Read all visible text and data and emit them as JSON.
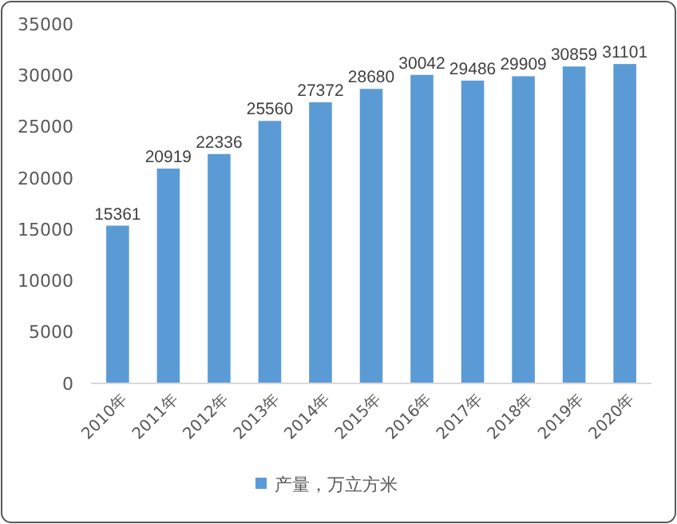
{
  "chart_data": {
    "type": "bar",
    "categories": [
      "2010年",
      "2011年",
      "2012年",
      "2013年",
      "2014年",
      "2015年",
      "2016年",
      "2017年",
      "2018年",
      "2019年",
      "2020年"
    ],
    "series": [
      {
        "name": "产量，万立方米",
        "color": "#5b9bd5",
        "values": [
          15361,
          20919,
          22336,
          25560,
          27372,
          28680,
          30042,
          29486,
          29909,
          30859,
          31101
        ]
      }
    ],
    "ylim": [
      0,
      35000
    ],
    "yticks": [
      0,
      5000,
      10000,
      15000,
      20000,
      25000,
      30000,
      35000
    ],
    "data_labels": true,
    "legend": "bottom"
  }
}
